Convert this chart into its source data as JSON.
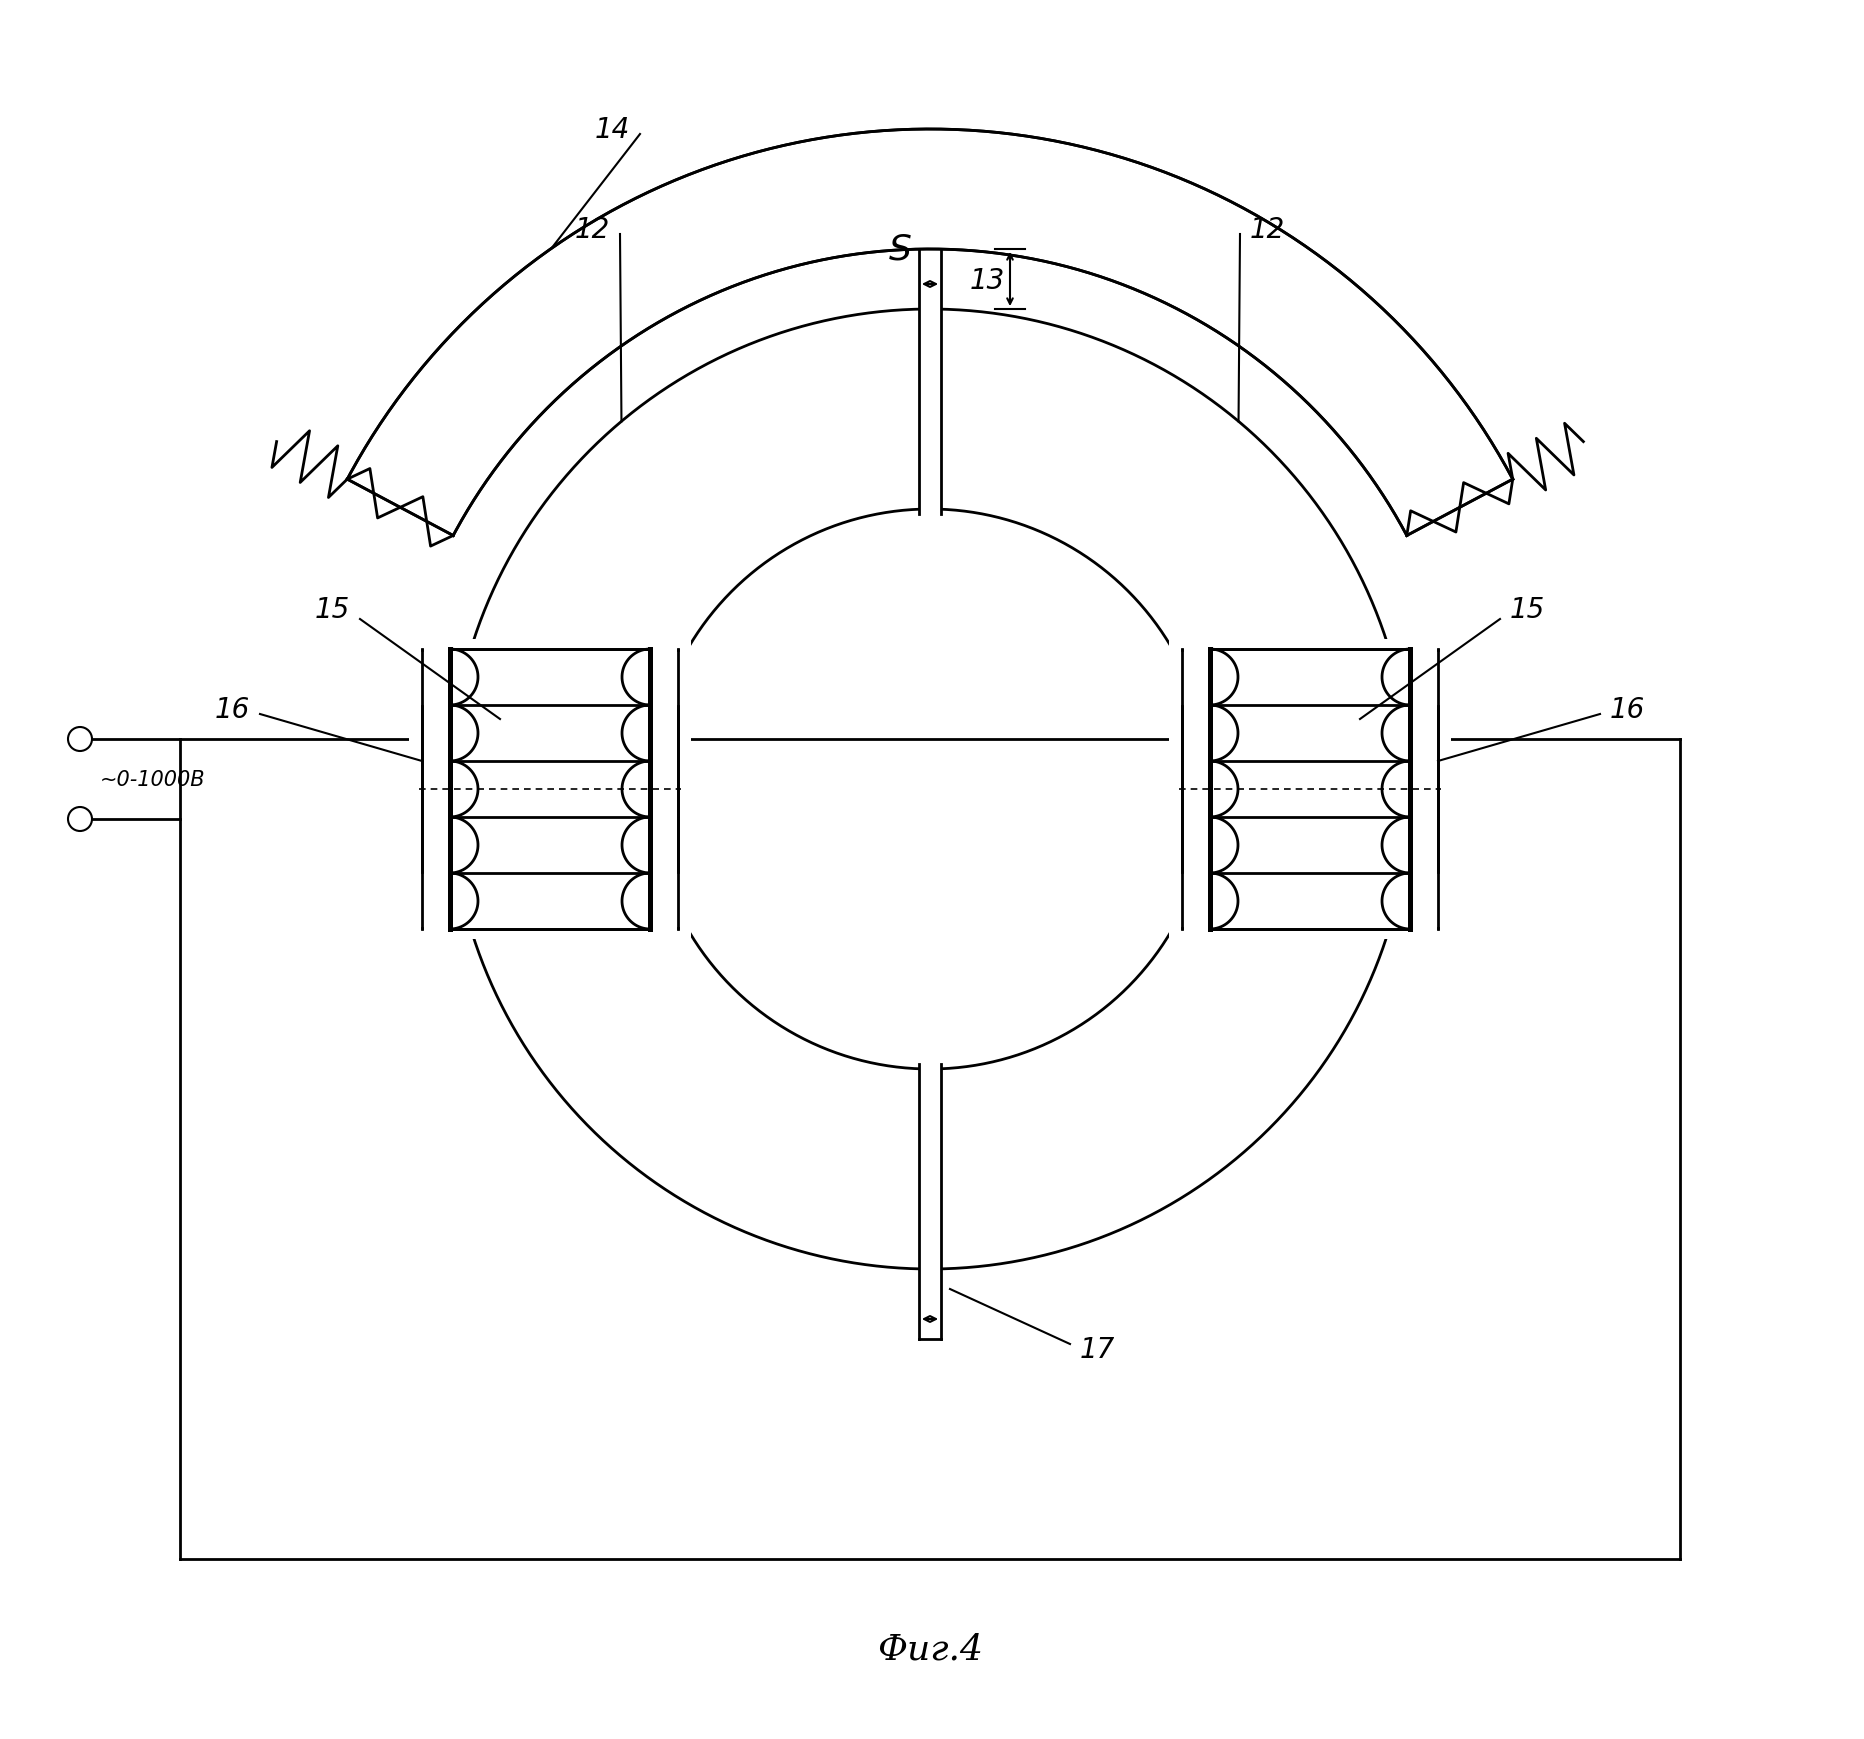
{
  "bg_color": "#ffffff",
  "line_color": "#000000",
  "fig_width": 18.64,
  "fig_height": 17.4,
  "title": "Фиг.4",
  "label_12_left": "12",
  "label_12_right": "12",
  "label_13": "13",
  "label_14": "14",
  "label_15_left": "15",
  "label_15_right": "15",
  "label_16_left": "16",
  "label_16_right": "16",
  "label_17": "17",
  "label_S": "S",
  "label_voltage": "~0-1000В"
}
